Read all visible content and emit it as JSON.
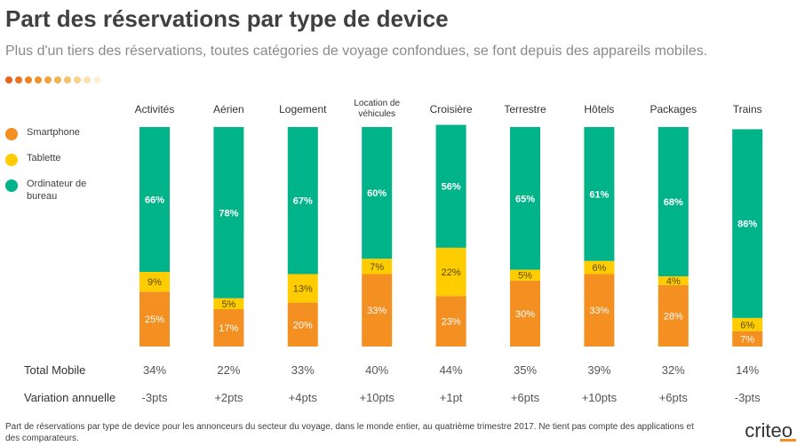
{
  "header": {
    "title": "Part des réservations par type de device",
    "subtitle": "Plus d'un tiers des réservations, toutes catégories de voyage confondues, se font depuis des appareils mobiles."
  },
  "decor": {
    "dot_colors": [
      "#e8641b",
      "#ec7420",
      "#ef8426",
      "#f1932e",
      "#f3a23f",
      "#f5b254",
      "#f7c26d",
      "#f9d28b",
      "#fbe1ad",
      "#fdf0d6"
    ]
  },
  "colors": {
    "smartphone": "#f39021",
    "tablette": "#ffcc00",
    "ordinateur": "#00b388"
  },
  "chart_data": {
    "type": "bar",
    "stacked": true,
    "categories": [
      "Activités",
      "Aérien",
      "Logement",
      "Location de véhicules",
      "Croisière",
      "Terrestre",
      "Hôtels",
      "Packages",
      "Trains"
    ],
    "series": [
      {
        "name": "Smartphone",
        "values": [
          25,
          17,
          20,
          33,
          23,
          30,
          33,
          28,
          7
        ],
        "labels": [
          "25%",
          "17%",
          "20%",
          "33%",
          "23%",
          "30%",
          "33%",
          "28%",
          "7%"
        ]
      },
      {
        "name": "Tablette",
        "values": [
          9,
          5,
          13,
          7,
          22,
          5,
          6,
          4,
          6
        ],
        "labels": [
          "9%",
          "5%",
          "13%",
          "7%",
          "22%",
          "5%",
          "6%",
          "4%",
          "6%"
        ]
      },
      {
        "name": "Ordinateur de bureau",
        "values": [
          66,
          78,
          67,
          60,
          56,
          65,
          61,
          68,
          86
        ],
        "labels": [
          "66%",
          "78%",
          "67%",
          "60%",
          "56%",
          "65%",
          "61%",
          "68%",
          "86%"
        ]
      }
    ],
    "ylim": [
      0,
      100
    ],
    "legend_position": "left",
    "grid": false,
    "rows": [
      {
        "label": "Total Mobile",
        "values": [
          "34%",
          "22%",
          "33%",
          "40%",
          "44%",
          "35%",
          "39%",
          "32%",
          "14%"
        ]
      },
      {
        "label": "Variation annuelle",
        "values": [
          "-3pts",
          "+2pts",
          "+4pts",
          "+10pts",
          "+1pt",
          "+6pts",
          "+10pts",
          "+6pts",
          "-3pts"
        ]
      }
    ]
  },
  "footnote": "Part de réservations par type de device pour les annonceurs du secteur du voyage, dans le monde entier, au quatrième trimestre 2017. Ne tient pas compte des applications et des comparateurs.",
  "logo": {
    "text": "criteo"
  }
}
